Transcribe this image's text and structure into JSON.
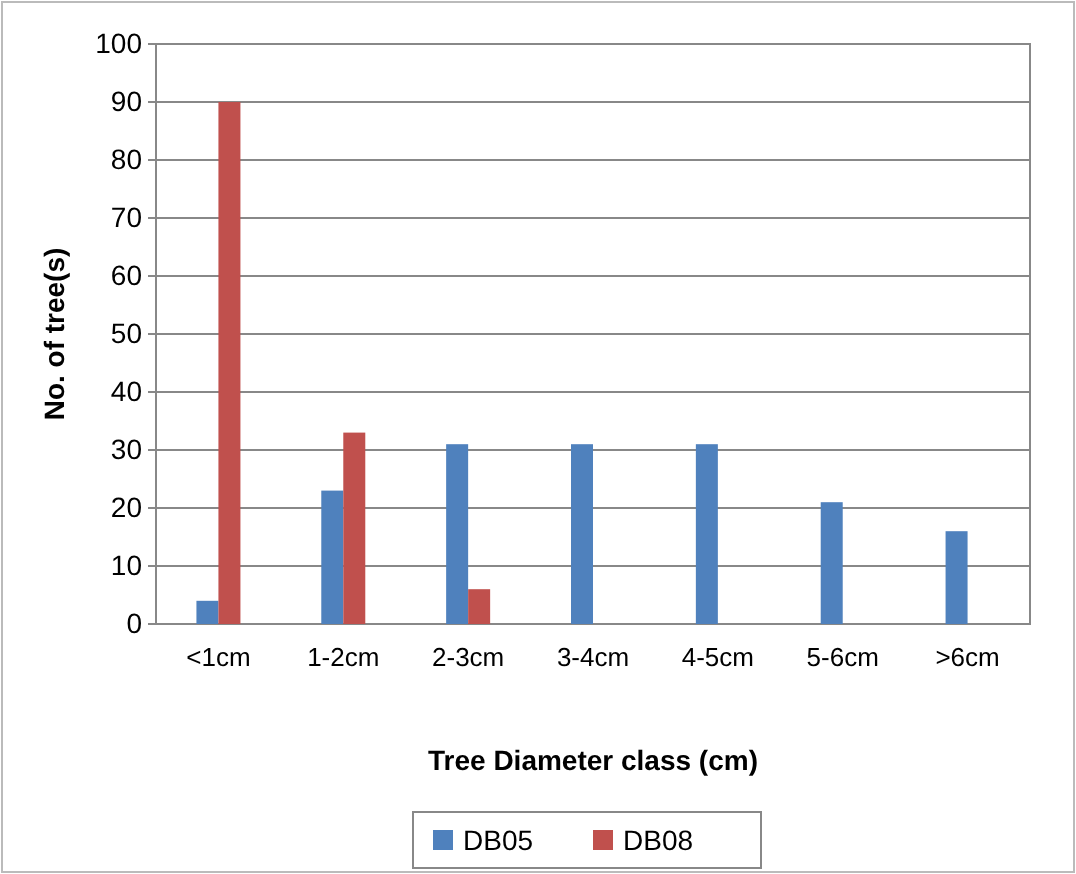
{
  "chart_data": {
    "type": "bar",
    "xlabel": "Tree Diameter class (cm)",
    "ylabel": "No. of tree(s)",
    "categories": [
      "<1cm",
      "1-2cm",
      "2-3cm",
      "3-4cm",
      "4-5cm",
      "5-6cm",
      ">6cm"
    ],
    "series": [
      {
        "name": "DB05",
        "color": "#4f81bd",
        "values": [
          4,
          23,
          31,
          31,
          31,
          21,
          16
        ]
      },
      {
        "name": "DB08",
        "color": "#c0504d",
        "values": [
          90,
          33,
          6,
          null,
          null,
          null,
          null
        ]
      }
    ],
    "ylim": [
      0,
      100
    ],
    "yticks": [
      0,
      10,
      20,
      30,
      40,
      50,
      60,
      70,
      80,
      90,
      100
    ],
    "grid": "y",
    "legend": "bottom"
  }
}
